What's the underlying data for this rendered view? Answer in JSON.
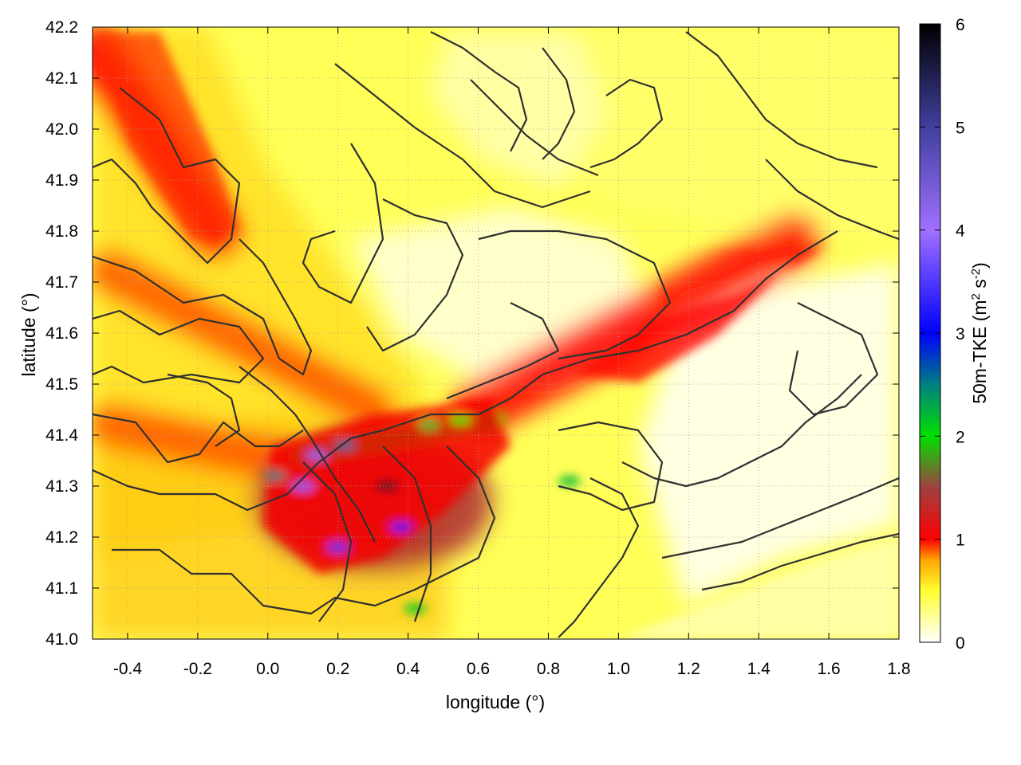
{
  "chart_data": {
    "type": "heatmap",
    "title": "",
    "xlabel": "longitude (°)",
    "ylabel": "latitude (°)",
    "colorbar": {
      "label_prefix": "50m-TKE (m",
      "label_sup1": "2",
      "label_mid": " s",
      "label_sup2": "-2",
      "label_suffix": ")",
      "range": [
        0,
        6
      ],
      "ticks": [
        "0",
        "1",
        "2",
        "3",
        "4",
        "5",
        "6"
      ],
      "stops": [
        {
          "value": 0.0,
          "color": "#ffffff"
        },
        {
          "value": 0.5,
          "color": "#ffff30"
        },
        {
          "value": 0.8,
          "color": "#ffa500"
        },
        {
          "value": 1.0,
          "color": "#ff0000"
        },
        {
          "value": 1.5,
          "color": "#a04040"
        },
        {
          "value": 2.0,
          "color": "#00e000"
        },
        {
          "value": 2.5,
          "color": "#008080"
        },
        {
          "value": 3.0,
          "color": "#0000ff"
        },
        {
          "value": 4.0,
          "color": "#a070ff"
        },
        {
          "value": 5.0,
          "color": "#4040a0"
        },
        {
          "value": 6.0,
          "color": "#000000"
        }
      ]
    },
    "xlim": [
      -0.5,
      1.8
    ],
    "ylim": [
      41.0,
      42.2
    ],
    "x_ticks": [
      -0.4,
      -0.2,
      0.0,
      0.2,
      0.4,
      0.6,
      0.8,
      1.0,
      1.2,
      1.4,
      1.6,
      1.8
    ],
    "x_tick_labels": [
      "-0.4",
      "-0.2",
      "0.0",
      "0.2",
      "0.4",
      "0.6",
      "0.8",
      "1.0",
      "1.2",
      "1.4",
      "1.6",
      "1.8"
    ],
    "y_ticks": [
      41.0,
      41.1,
      41.2,
      41.3,
      41.4,
      41.5,
      41.6,
      41.7,
      41.8,
      41.9,
      42.0,
      42.1,
      42.2
    ],
    "y_tick_labels": [
      "41.0",
      "41.1",
      "41.2",
      "41.3",
      "41.4",
      "41.5",
      "41.6",
      "41.7",
      "41.8",
      "41.9",
      "42.0",
      "42.1",
      "42.2"
    ],
    "grid": true,
    "overlay": "terrain elevation contour lines (dark grey)",
    "field_features": [
      {
        "kind": "ridge",
        "from": [
          -0.48,
          42.15
        ],
        "to": [
          -0.15,
          41.8
        ],
        "tke": 1.0
      },
      {
        "kind": "band",
        "from": [
          -0.45,
          41.72
        ],
        "to": [
          0.3,
          41.45
        ],
        "tke": 0.9
      },
      {
        "kind": "band",
        "from": [
          -0.45,
          41.42
        ],
        "to": [
          0.25,
          41.32
        ],
        "tke": 0.9
      },
      {
        "kind": "core",
        "center": [
          0.3,
          41.27
        ],
        "tke": 1.4
      },
      {
        "kind": "valley-jet",
        "from": [
          0.1,
          41.36
        ],
        "to": [
          0.65,
          41.43
        ],
        "tke": 2.0
      },
      {
        "kind": "ridge",
        "from": [
          0.6,
          41.45
        ],
        "to": [
          1.5,
          41.78
        ],
        "tke": 1.0
      },
      {
        "kind": "calm-sea",
        "from": [
          1.0,
          41.0
        ],
        "to": [
          1.8,
          41.15
        ],
        "tke": 0.2
      }
    ]
  }
}
